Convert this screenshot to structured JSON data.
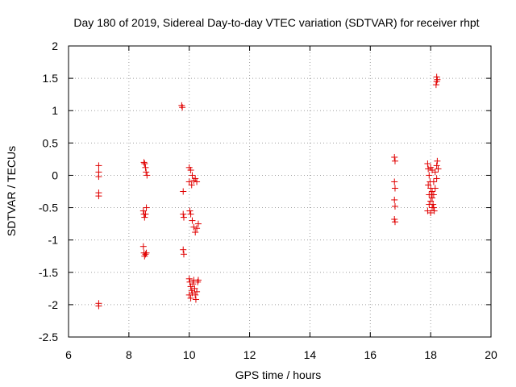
{
  "chart_data": {
    "type": "scatter",
    "title": "Day 180 of 2019, Sidereal Day-to-day VTEC variation (SDTVAR) for receiver rhpt",
    "xlabel": "GPS time / hours",
    "ylabel": "SDTVAR / TECUs",
    "xlim": [
      6,
      20
    ],
    "ylim": [
      -2.5,
      2
    ],
    "xticks": [
      6,
      8,
      10,
      12,
      14,
      16,
      18,
      20
    ],
    "xtick_labels": [
      "6",
      "8",
      "10",
      "12",
      "14",
      "16",
      "18",
      "20"
    ],
    "yticks": [
      -2.5,
      -2,
      -1.5,
      -1,
      -0.5,
      0,
      0.5,
      1,
      1.5,
      2
    ],
    "ytick_labels": [
      "-2.5",
      "-2",
      "-1.5",
      "-1",
      "-0.5",
      "0",
      "0.5",
      "1",
      "1.5",
      "2"
    ],
    "grid": true,
    "marker": "+",
    "color": "#e00000",
    "series": [
      {
        "name": "SDTVAR",
        "points": [
          [
            7.0,
            0.15
          ],
          [
            7.0,
            0.05
          ],
          [
            7.0,
            -0.02
          ],
          [
            7.0,
            -0.27
          ],
          [
            7.0,
            -0.32
          ],
          [
            7.0,
            -1.98
          ],
          [
            7.0,
            -2.02
          ],
          [
            8.5,
            0.2
          ],
          [
            8.52,
            0.18
          ],
          [
            8.55,
            0.12
          ],
          [
            8.57,
            0.05
          ],
          [
            8.6,
            0.0
          ],
          [
            8.48,
            -0.55
          ],
          [
            8.5,
            -0.6
          ],
          [
            8.52,
            -0.65
          ],
          [
            8.55,
            -0.6
          ],
          [
            8.58,
            -0.5
          ],
          [
            8.48,
            -1.1
          ],
          [
            8.5,
            -1.2
          ],
          [
            8.52,
            -1.25
          ],
          [
            8.55,
            -1.22
          ],
          [
            8.58,
            -1.2
          ],
          [
            9.75,
            1.08
          ],
          [
            9.77,
            1.05
          ],
          [
            9.8,
            -0.25
          ],
          [
            9.8,
            -0.6
          ],
          [
            9.82,
            -0.65
          ],
          [
            9.8,
            -1.15
          ],
          [
            9.82,
            -1.22
          ],
          [
            10.0,
            0.12
          ],
          [
            10.05,
            0.08
          ],
          [
            10.1,
            0.0
          ],
          [
            10.15,
            -0.08
          ],
          [
            10.2,
            -0.05
          ],
          [
            10.25,
            -0.1
          ],
          [
            10.0,
            -0.1
          ],
          [
            10.08,
            -0.15
          ],
          [
            10.02,
            -0.55
          ],
          [
            10.05,
            -0.6
          ],
          [
            10.1,
            -0.7
          ],
          [
            10.15,
            -0.8
          ],
          [
            10.2,
            -0.88
          ],
          [
            10.25,
            -0.82
          ],
          [
            10.3,
            -0.75
          ],
          [
            10.0,
            -1.6
          ],
          [
            10.02,
            -1.65
          ],
          [
            10.05,
            -1.72
          ],
          [
            10.08,
            -1.78
          ],
          [
            10.1,
            -1.82
          ],
          [
            10.12,
            -1.68
          ],
          [
            10.15,
            -1.62
          ],
          [
            10.18,
            -1.75
          ],
          [
            10.2,
            -1.85
          ],
          [
            10.22,
            -1.92
          ],
          [
            10.25,
            -1.8
          ],
          [
            10.28,
            -1.65
          ],
          [
            10.3,
            -1.62
          ],
          [
            10.0,
            -1.85
          ],
          [
            10.05,
            -1.9
          ],
          [
            16.8,
            0.28
          ],
          [
            16.82,
            0.22
          ],
          [
            16.8,
            -0.1
          ],
          [
            16.82,
            -0.2
          ],
          [
            16.8,
            -0.38
          ],
          [
            16.82,
            -0.48
          ],
          [
            16.8,
            -0.68
          ],
          [
            16.82,
            -0.72
          ],
          [
            17.9,
            0.18
          ],
          [
            17.92,
            0.1
          ],
          [
            17.95,
            0.0
          ],
          [
            17.98,
            -0.1
          ],
          [
            18.0,
            -0.2
          ],
          [
            18.02,
            -0.3
          ],
          [
            18.05,
            -0.35
          ],
          [
            18.08,
            -0.45
          ],
          [
            18.1,
            -0.5
          ],
          [
            18.12,
            -0.55
          ],
          [
            17.9,
            -0.55
          ],
          [
            17.95,
            -0.45
          ],
          [
            18.0,
            -0.4
          ],
          [
            18.05,
            -0.25
          ],
          [
            18.1,
            -0.1
          ],
          [
            18.15,
            0.05
          ],
          [
            18.2,
            0.15
          ],
          [
            18.22,
            0.22
          ],
          [
            18.25,
            0.1
          ],
          [
            18.2,
            -0.05
          ],
          [
            18.15,
            -0.2
          ],
          [
            18.1,
            -0.3
          ],
          [
            18.05,
            -0.5
          ],
          [
            18.0,
            -0.58
          ],
          [
            17.95,
            -0.3
          ],
          [
            17.92,
            -0.15
          ],
          [
            18.0,
            0.12
          ],
          [
            18.05,
            0.08
          ],
          [
            18.2,
            1.52
          ],
          [
            18.22,
            1.48
          ],
          [
            18.2,
            1.45
          ],
          [
            18.18,
            1.4
          ]
        ]
      }
    ]
  }
}
